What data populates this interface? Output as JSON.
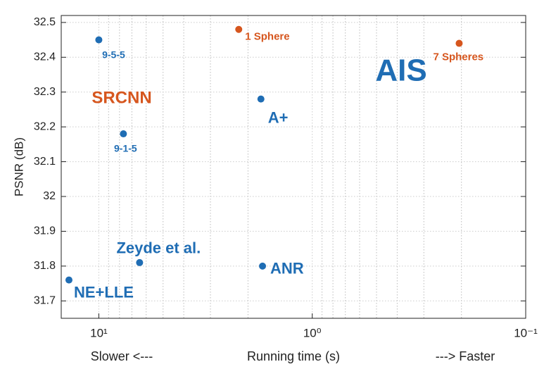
{
  "chart_data": {
    "type": "scatter",
    "xlabel": "Running time (s)",
    "ylabel": "PSNR (dB)",
    "x_left_note": "Slower <---",
    "x_right_note": "---> Faster",
    "xscale": "log",
    "xlim": [
      15,
      0.1
    ],
    "ylim": [
      31.65,
      32.52
    ],
    "xticks": [
      {
        "value": 10,
        "label": "10¹"
      },
      {
        "value": 1,
        "label": "10⁰"
      },
      {
        "value": 0.1,
        "label": "10⁻¹"
      }
    ],
    "minor_xticks": [
      9,
      8,
      7,
      6,
      5,
      4,
      3,
      2,
      0.9,
      0.8,
      0.7,
      0.6,
      0.5,
      0.4,
      0.3,
      0.2
    ],
    "yticks": [
      31.7,
      31.8,
      31.9,
      32,
      32.1,
      32.2,
      32.3,
      32.4,
      32.5
    ],
    "grid": true,
    "annotations": [
      "SRCNN",
      "AIS"
    ],
    "series": [
      {
        "color": "#1f6db4",
        "x": [
          10,
          1.74,
          7.67,
          6.44,
          1.71,
          13.8
        ],
        "values": [
          32.45,
          32.28,
          32.18,
          31.81,
          31.8,
          31.76
        ],
        "labels": [
          "9-5-5",
          "A+",
          "9-1-5",
          "Zeyde et al.",
          "ANR",
          "NE+LLE"
        ]
      },
      {
        "color": "#d6561e",
        "x": [
          2.21,
          0.205
        ],
        "values": [
          32.48,
          32.44
        ],
        "labels": [
          "1 Sphere",
          "7 Spheres"
        ]
      }
    ]
  }
}
